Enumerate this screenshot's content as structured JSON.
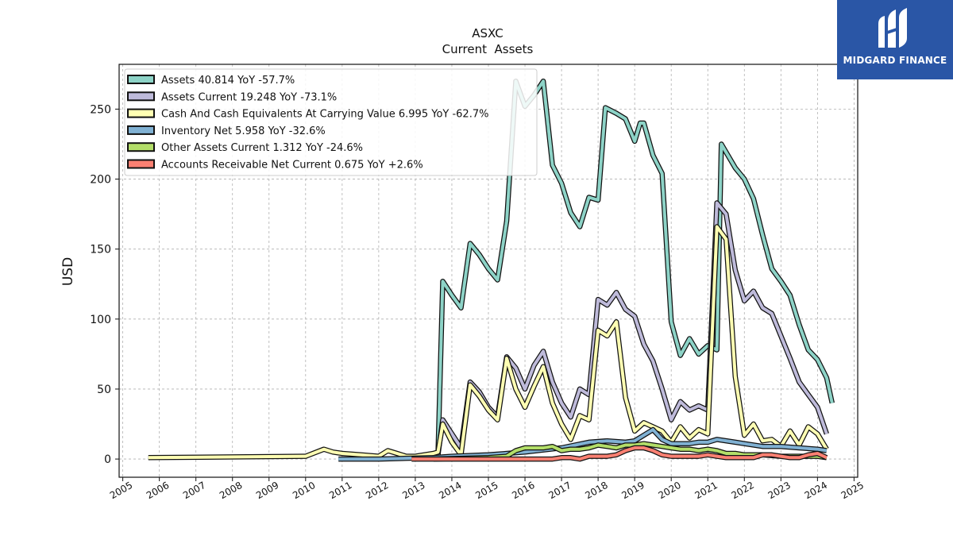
{
  "chart_data": {
    "type": "line",
    "title": "ASXC",
    "subtitle": "Current  Assets",
    "ylabel": "USD",
    "xlabel": "",
    "xlim": [
      2004.9,
      2025.1
    ],
    "ylim": [
      -13,
      282
    ],
    "yticks": [
      0,
      50,
      100,
      150,
      200,
      250
    ],
    "xticks": [
      2005,
      2006,
      2007,
      2008,
      2009,
      2010,
      2011,
      2012,
      2013,
      2014,
      2015,
      2016,
      2017,
      2018,
      2019,
      2020,
      2021,
      2022,
      2023,
      2024,
      2025
    ],
    "grid": true,
    "legend_position": "top-left",
    "series": [
      {
        "name": "Assets  40.814 YoY -57.7%",
        "color": "#8dd3c7",
        "points": [
          [
            2013.62,
            3
          ],
          [
            2013.75,
            127
          ],
          [
            2014.0,
            117
          ],
          [
            2014.25,
            108
          ],
          [
            2014.5,
            154
          ],
          [
            2014.75,
            146
          ],
          [
            2015.0,
            136
          ],
          [
            2015.25,
            128
          ],
          [
            2015.5,
            170
          ],
          [
            2015.75,
            270
          ],
          [
            2016.0,
            252
          ],
          [
            2016.25,
            260
          ],
          [
            2016.5,
            270
          ],
          [
            2016.75,
            210
          ],
          [
            2017.0,
            197
          ],
          [
            2017.25,
            176
          ],
          [
            2017.5,
            166
          ],
          [
            2017.75,
            187
          ],
          [
            2018.0,
            185
          ],
          [
            2018.2,
            251
          ],
          [
            2018.5,
            247
          ],
          [
            2018.75,
            243
          ],
          [
            2019.0,
            227
          ],
          [
            2019.15,
            240
          ],
          [
            2019.25,
            240
          ],
          [
            2019.5,
            217
          ],
          [
            2019.75,
            204
          ],
          [
            2020.0,
            98
          ],
          [
            2020.25,
            74
          ],
          [
            2020.5,
            86
          ],
          [
            2020.75,
            75
          ],
          [
            2021.0,
            81
          ],
          [
            2021.25,
            78
          ],
          [
            2021.37,
            225
          ],
          [
            2021.75,
            208
          ],
          [
            2022.0,
            200
          ],
          [
            2022.25,
            186
          ],
          [
            2022.5,
            160
          ],
          [
            2022.75,
            136
          ],
          [
            2023.0,
            127
          ],
          [
            2023.25,
            117
          ],
          [
            2023.5,
            96
          ],
          [
            2023.75,
            78
          ],
          [
            2024.0,
            71
          ],
          [
            2024.25,
            58
          ],
          [
            2024.4,
            40
          ]
        ]
      },
      {
        "name": "Assets Current  19.248 YoY -73.1%",
        "color": "#bebada",
        "points": [
          [
            2013.62,
            3
          ],
          [
            2013.75,
            28
          ],
          [
            2014.0,
            18
          ],
          [
            2014.25,
            8
          ],
          [
            2014.5,
            55
          ],
          [
            2014.75,
            48
          ],
          [
            2015.0,
            37
          ],
          [
            2015.25,
            30
          ],
          [
            2015.5,
            73
          ],
          [
            2015.75,
            65
          ],
          [
            2016.0,
            50
          ],
          [
            2016.25,
            67
          ],
          [
            2016.5,
            77
          ],
          [
            2016.75,
            55
          ],
          [
            2017.0,
            40
          ],
          [
            2017.25,
            30
          ],
          [
            2017.5,
            50
          ],
          [
            2017.75,
            46
          ],
          [
            2018.0,
            114
          ],
          [
            2018.25,
            110
          ],
          [
            2018.5,
            119
          ],
          [
            2018.75,
            107
          ],
          [
            2019.0,
            102
          ],
          [
            2019.25,
            82
          ],
          [
            2019.5,
            70
          ],
          [
            2019.75,
            50
          ],
          [
            2020.0,
            28
          ],
          [
            2020.25,
            41
          ],
          [
            2020.5,
            35
          ],
          [
            2020.75,
            38
          ],
          [
            2021.0,
            35
          ],
          [
            2021.25,
            183
          ],
          [
            2021.5,
            175
          ],
          [
            2021.75,
            135
          ],
          [
            2022.0,
            113
          ],
          [
            2022.25,
            120
          ],
          [
            2022.5,
            108
          ],
          [
            2022.75,
            104
          ],
          [
            2023.0,
            88
          ],
          [
            2023.25,
            72
          ],
          [
            2023.5,
            55
          ],
          [
            2023.75,
            46
          ],
          [
            2024.0,
            37
          ],
          [
            2024.25,
            18
          ]
        ]
      },
      {
        "name": "Cash And Cash Equivalents At Carrying Value  6.995 YoY -62.7%",
        "color": "#ffffb3",
        "points": [
          [
            2005.7,
            1
          ],
          [
            2010.0,
            2
          ],
          [
            2010.5,
            7
          ],
          [
            2010.75,
            5
          ],
          [
            2011.0,
            4
          ],
          [
            2011.5,
            3
          ],
          [
            2012.0,
            2
          ],
          [
            2012.25,
            6
          ],
          [
            2012.5,
            4
          ],
          [
            2012.75,
            2
          ],
          [
            2013.0,
            2
          ],
          [
            2013.5,
            4
          ],
          [
            2013.62,
            5
          ],
          [
            2013.75,
            25
          ],
          [
            2014.0,
            12
          ],
          [
            2014.25,
            3
          ],
          [
            2014.5,
            53
          ],
          [
            2014.75,
            45
          ],
          [
            2015.0,
            35
          ],
          [
            2015.25,
            28
          ],
          [
            2015.5,
            72
          ],
          [
            2015.75,
            50
          ],
          [
            2016.0,
            37
          ],
          [
            2016.25,
            52
          ],
          [
            2016.5,
            66
          ],
          [
            2016.75,
            40
          ],
          [
            2017.0,
            25
          ],
          [
            2017.25,
            14
          ],
          [
            2017.5,
            31
          ],
          [
            2017.75,
            28
          ],
          [
            2018.0,
            92
          ],
          [
            2018.25,
            88
          ],
          [
            2018.5,
            98
          ],
          [
            2018.75,
            44
          ],
          [
            2019.0,
            20
          ],
          [
            2019.25,
            26
          ],
          [
            2019.5,
            23
          ],
          [
            2019.75,
            20
          ],
          [
            2020.0,
            12
          ],
          [
            2020.25,
            23
          ],
          [
            2020.5,
            15
          ],
          [
            2020.75,
            21
          ],
          [
            2021.0,
            18
          ],
          [
            2021.25,
            166
          ],
          [
            2021.5,
            157
          ],
          [
            2021.75,
            59
          ],
          [
            2022.0,
            17
          ],
          [
            2022.25,
            25
          ],
          [
            2022.5,
            13
          ],
          [
            2022.75,
            14
          ],
          [
            2023.0,
            9
          ],
          [
            2023.25,
            20
          ],
          [
            2023.5,
            10
          ],
          [
            2023.75,
            23
          ],
          [
            2024.0,
            18
          ],
          [
            2024.25,
            7
          ]
        ]
      },
      {
        "name": "Inventory Net  5.958 YoY -32.6%",
        "color": "#80b1d3",
        "points": [
          [
            2010.9,
            0
          ],
          [
            2012.0,
            0
          ],
          [
            2013.5,
            1
          ],
          [
            2014.0,
            2
          ],
          [
            2015.0,
            3
          ],
          [
            2016.0,
            5
          ],
          [
            2017.0,
            8
          ],
          [
            2017.75,
            12
          ],
          [
            2018.25,
            13
          ],
          [
            2018.75,
            12
          ],
          [
            2019.0,
            13
          ],
          [
            2019.25,
            17
          ],
          [
            2019.5,
            21
          ],
          [
            2019.75,
            14
          ],
          [
            2020.0,
            11
          ],
          [
            2020.5,
            11
          ],
          [
            2020.75,
            12
          ],
          [
            2021.0,
            12
          ],
          [
            2021.25,
            14
          ],
          [
            2021.75,
            12
          ],
          [
            2022.0,
            11
          ],
          [
            2022.5,
            9
          ],
          [
            2023.0,
            9
          ],
          [
            2023.5,
            8
          ],
          [
            2024.0,
            7
          ],
          [
            2024.25,
            6
          ]
        ]
      },
      {
        "name": "Other Assets Current  1.312 YoY -24.6%",
        "color": "#b3de69",
        "points": [
          [
            2013.5,
            0
          ],
          [
            2015.0,
            1
          ],
          [
            2015.5,
            2
          ],
          [
            2015.75,
            6
          ],
          [
            2016.0,
            8
          ],
          [
            2016.25,
            8
          ],
          [
            2016.5,
            8
          ],
          [
            2016.75,
            9
          ],
          [
            2017.0,
            6
          ],
          [
            2017.25,
            7
          ],
          [
            2017.5,
            7
          ],
          [
            2017.75,
            8
          ],
          [
            2018.0,
            10
          ],
          [
            2018.25,
            9
          ],
          [
            2018.5,
            8
          ],
          [
            2018.75,
            10
          ],
          [
            2019.0,
            10
          ],
          [
            2019.25,
            11
          ],
          [
            2019.5,
            10
          ],
          [
            2019.75,
            9
          ],
          [
            2020.0,
            8
          ],
          [
            2020.25,
            7
          ],
          [
            2020.5,
            7
          ],
          [
            2020.75,
            6
          ],
          [
            2021.0,
            7
          ],
          [
            2021.25,
            6
          ],
          [
            2021.5,
            4
          ],
          [
            2021.75,
            4
          ],
          [
            2022.0,
            3
          ],
          [
            2022.5,
            3
          ],
          [
            2023.0,
            2
          ],
          [
            2023.5,
            2
          ],
          [
            2024.0,
            2
          ],
          [
            2024.25,
            1
          ]
        ]
      },
      {
        "name": "Accounts Receivable Net Current  0.675 YoY +2.6%",
        "color": "#fb8072",
        "points": [
          [
            2012.9,
            0
          ],
          [
            2013.5,
            0
          ],
          [
            2015.0,
            0
          ],
          [
            2016.0,
            0
          ],
          [
            2016.75,
            0
          ],
          [
            2017.0,
            1
          ],
          [
            2017.25,
            1
          ],
          [
            2017.5,
            0
          ],
          [
            2017.75,
            2
          ],
          [
            2018.0,
            2
          ],
          [
            2018.25,
            2
          ],
          [
            2018.5,
            3
          ],
          [
            2018.75,
            6
          ],
          [
            2019.0,
            8
          ],
          [
            2019.25,
            8
          ],
          [
            2019.5,
            6
          ],
          [
            2019.75,
            3
          ],
          [
            2020.0,
            2
          ],
          [
            2020.25,
            2
          ],
          [
            2020.5,
            2
          ],
          [
            2020.75,
            2
          ],
          [
            2021.0,
            3
          ],
          [
            2021.25,
            2
          ],
          [
            2021.5,
            1
          ],
          [
            2021.75,
            1
          ],
          [
            2022.0,
            1
          ],
          [
            2022.25,
            1
          ],
          [
            2022.5,
            3
          ],
          [
            2022.75,
            3
          ],
          [
            2023.0,
            2
          ],
          [
            2023.25,
            1
          ],
          [
            2023.5,
            1
          ],
          [
            2023.75,
            3
          ],
          [
            2024.0,
            4
          ],
          [
            2024.25,
            1
          ]
        ]
      }
    ]
  },
  "logo": {
    "text": "MIDGARD FINANCE",
    "icon": "midgard-logo-icon",
    "color": "#2a56a6"
  }
}
